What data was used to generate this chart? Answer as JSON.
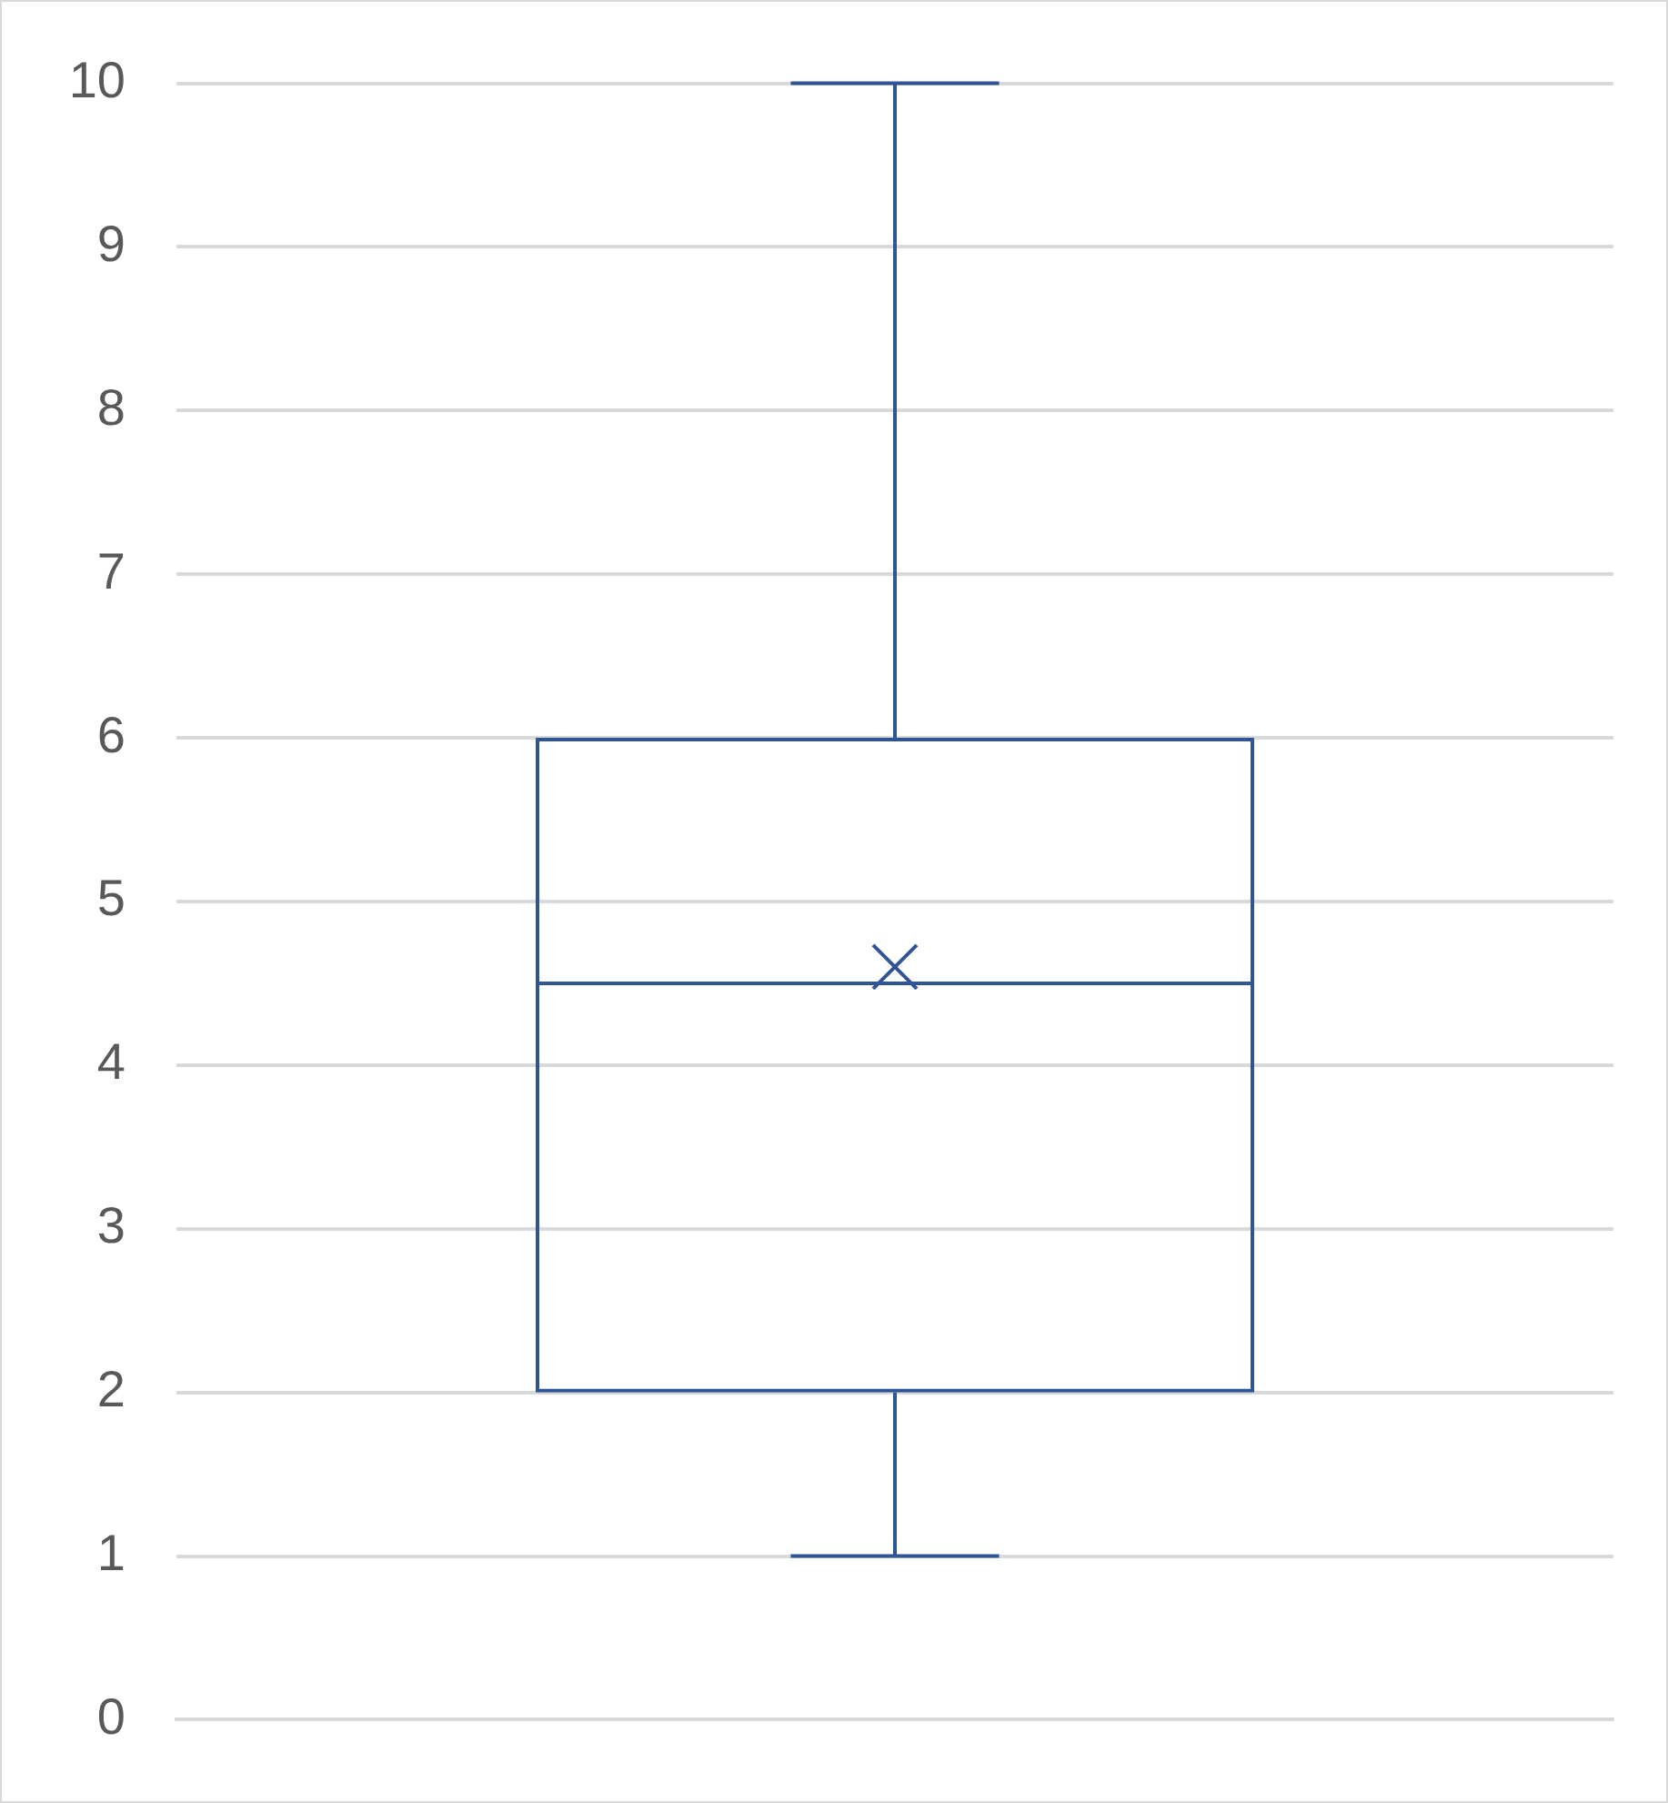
{
  "chart_data": {
    "type": "box",
    "categories": [
      null
    ],
    "boxes": [
      {
        "low": 1,
        "q1": 2,
        "median": 4.5,
        "q3": 6,
        "high": 10,
        "mean": 4.6
      }
    ],
    "color": "#2f5597",
    "ylim": [
      0,
      10
    ],
    "yticks": [
      0,
      1,
      2,
      3,
      4,
      5,
      6,
      7,
      8,
      9,
      10
    ],
    "grid": "y",
    "marker": "cross"
  }
}
